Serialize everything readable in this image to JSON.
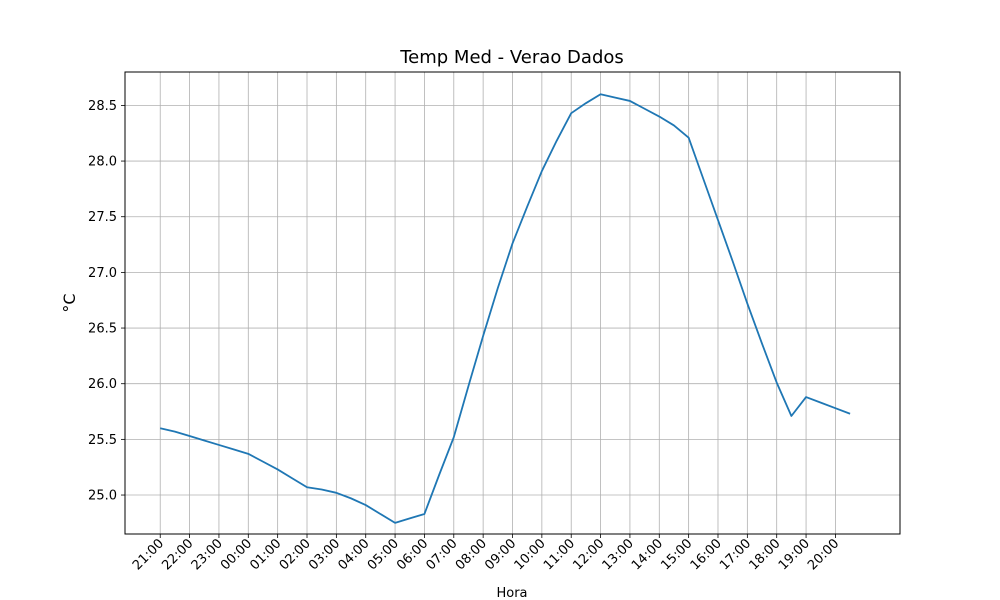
{
  "chart_data": {
    "type": "line",
    "title": "Temp Med - Verao Dados",
    "xlabel": "Hora",
    "ylabel": "°C",
    "grid": true,
    "line_color": "#1f77b4",
    "x_tick_labels": [
      "21:00",
      "22:00",
      "23:00",
      "00:00",
      "01:00",
      "02:00",
      "03:00",
      "04:00",
      "05:00",
      "06:00",
      "07:00",
      "08:00",
      "09:00",
      "10:00",
      "11:00",
      "12:00",
      "13:00",
      "14:00",
      "15:00",
      "16:00",
      "17:00",
      "18:00",
      "19:00",
      "20:00"
    ],
    "y_ticks": [
      25.0,
      25.5,
      26.0,
      26.5,
      27.0,
      27.5,
      28.0,
      28.5
    ],
    "ylim": [
      24.65,
      28.8
    ],
    "x": [
      0,
      1,
      2,
      3,
      4,
      5,
      6,
      7,
      8,
      9,
      10,
      11,
      12,
      13,
      14,
      15,
      16,
      17,
      18,
      19,
      20,
      21,
      22,
      23,
      24,
      25,
      26,
      27,
      28,
      29,
      30,
      31,
      32,
      33,
      34,
      35,
      36,
      37,
      38,
      39,
      40,
      41,
      42,
      43,
      44,
      45,
      46,
      47
    ],
    "xlim": [
      -2.4,
      50.4
    ],
    "x_tick_positions": [
      0,
      2,
      4,
      6,
      8,
      10,
      12,
      14,
      16,
      18,
      20,
      22,
      24,
      26,
      28,
      30,
      32,
      34,
      36,
      38,
      40,
      42,
      44,
      46
    ],
    "series": [
      {
        "values": [
          25.6,
          25.57,
          25.53,
          25.49,
          25.45,
          25.41,
          25.37,
          25.3,
          25.23,
          25.15,
          25.07,
          25.05,
          25.02,
          24.97,
          24.91,
          24.83,
          24.75,
          24.79,
          24.83,
          25.18,
          25.52,
          25.98,
          26.43,
          26.86,
          27.26,
          27.59,
          27.91,
          28.18,
          28.43,
          28.52,
          28.6,
          28.57,
          28.54,
          28.47,
          28.4,
          28.32,
          28.21,
          27.84,
          27.47,
          27.1,
          26.72,
          26.36,
          26.01,
          25.71,
          25.88,
          25.83,
          25.78,
          25.73
        ]
      }
    ]
  }
}
